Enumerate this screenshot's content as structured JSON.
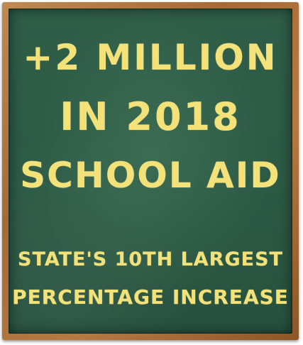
{
  "board": {
    "headline": [
      "+2 Million",
      "in 2018",
      "School Aid"
    ],
    "subline": [
      "State's 10th largest",
      "Percentage Increase"
    ]
  },
  "colors": {
    "chalk_text": "#f3e27a",
    "board_green": "#2c5a45",
    "frame_wood": "#a86a35"
  }
}
